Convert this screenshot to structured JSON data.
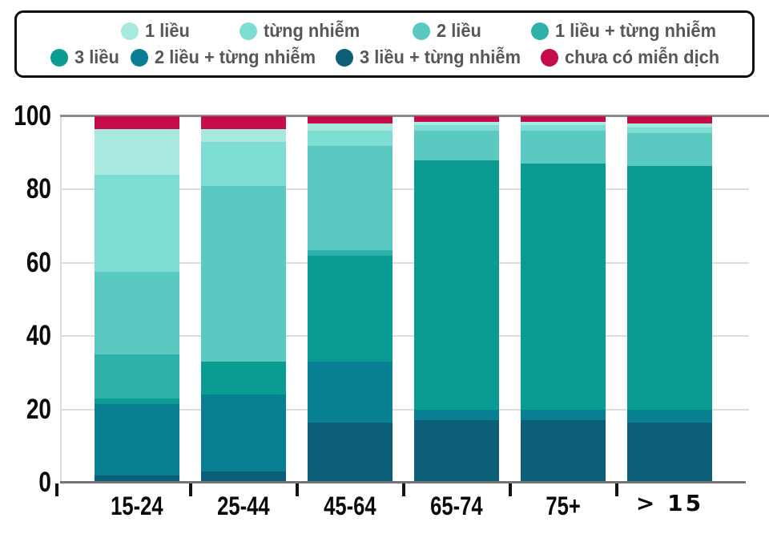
{
  "legend": {
    "rows": [
      [
        {
          "label": "1 liều",
          "color": "#a7e8df"
        },
        {
          "label": "từng nhiễm",
          "color": "#7eddd3"
        },
        {
          "label": "2 liều",
          "color": "#59c9c2"
        },
        {
          "label": "1 liều + từng nhiễm",
          "color": "#2fb1ab"
        }
      ],
      [
        {
          "label": "3 liều",
          "color": "#0a9c93"
        },
        {
          "label": "2 liều + từng nhiễm",
          "color": "#087f92"
        },
        {
          "label": "3 liều + từng nhiễm",
          "color": "#0c5f76"
        },
        {
          "label": "chưa có miễn dịch",
          "color": "#c60b49"
        }
      ]
    ]
  },
  "chart_data": {
    "type": "bar",
    "stacked": true,
    "unit": "percent",
    "categories": [
      "15-24",
      "25-44",
      "45-64",
      "65-74",
      "75+",
      "> 15"
    ],
    "ylim": [
      0,
      100
    ],
    "yticks": [
      0,
      20,
      40,
      60,
      80,
      100
    ],
    "grid": true,
    "legend_position": "top",
    "series": [
      {
        "name": "3 liều + từng nhiễm",
        "color": "#0c5f76",
        "values": [
          2,
          3,
          16.5,
          17,
          17,
          16.5
        ]
      },
      {
        "name": "2 liều + từng nhiễm",
        "color": "#087f92",
        "values": [
          19.5,
          21,
          16.5,
          3,
          3,
          3.5
        ]
      },
      {
        "name": "3 liều",
        "color": "#0a9c93",
        "values": [
          1.5,
          9,
          29,
          68,
          67,
          66.5
        ]
      },
      {
        "name": "1 liều + từng nhiễm",
        "color": "#2fb1ab",
        "values": [
          12,
          0,
          1.5,
          0,
          0,
          0
        ]
      },
      {
        "name": "2 liều",
        "color": "#59c9c2",
        "values": [
          22.5,
          48,
          28.5,
          8,
          9,
          9
        ]
      },
      {
        "name": "từng nhiễm",
        "color": "#7eddd3",
        "values": [
          26.5,
          12,
          4,
          1.5,
          1.5,
          1.5
        ]
      },
      {
        "name": "1 liều",
        "color": "#a7e8df",
        "values": [
          12.5,
          3.5,
          2,
          1,
          1,
          1
        ]
      },
      {
        "name": "chưa có miễn dịch",
        "color": "#c60b49",
        "values": [
          3.5,
          3.5,
          2,
          1.5,
          1.5,
          2
        ]
      }
    ]
  }
}
